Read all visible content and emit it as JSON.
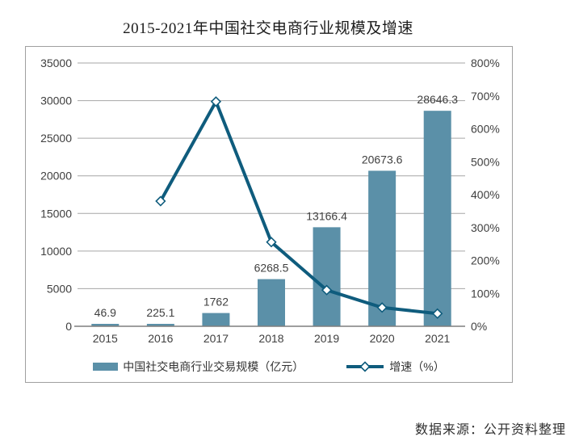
{
  "source_note": "数据来源：公开资料整理",
  "colors": {
    "bar": "#5b90a8",
    "line": "#0f5c7d",
    "grid": "#a6a6a6",
    "axis": "#7f7f7f",
    "marker_fill": "#ffffff"
  },
  "chart_data": {
    "type": "bar+line",
    "title": "2015-2021年中国社交电商行业规模及增速",
    "categories": [
      "2015",
      "2016",
      "2017",
      "2018",
      "2019",
      "2020",
      "2021"
    ],
    "series": [
      {
        "name": "中国社交电商行业交易规模（亿元）",
        "type": "bar",
        "axis": "left",
        "values": [
          46.9,
          225.1,
          1762,
          6268.5,
          13166.4,
          20673.6,
          28646.3
        ],
        "data_labels": [
          "46.9",
          "225.1",
          "1762",
          "6268.5",
          "13166.4",
          "20673.6",
          "28646.3"
        ]
      },
      {
        "name": "增速（%）",
        "type": "line",
        "axis": "right",
        "marker": "diamond",
        "values": [
          null,
          380.3,
          682.8,
          255.8,
          110.0,
          57.0,
          38.6
        ],
        "values_estimated_from_gridlines": true
      }
    ],
    "left_axis": {
      "min": 0,
      "max": 35000,
      "step": 5000,
      "ticks": [
        "0",
        "5000",
        "10000",
        "15000",
        "20000",
        "25000",
        "30000",
        "35000"
      ]
    },
    "right_axis": {
      "min": 0,
      "max": 800,
      "step": 100,
      "ticks": [
        "0%",
        "100%",
        "200%",
        "300%",
        "400%",
        "500%",
        "600%",
        "700%",
        "800%"
      ]
    },
    "grid": "horizontal",
    "legend_position": "bottom"
  }
}
